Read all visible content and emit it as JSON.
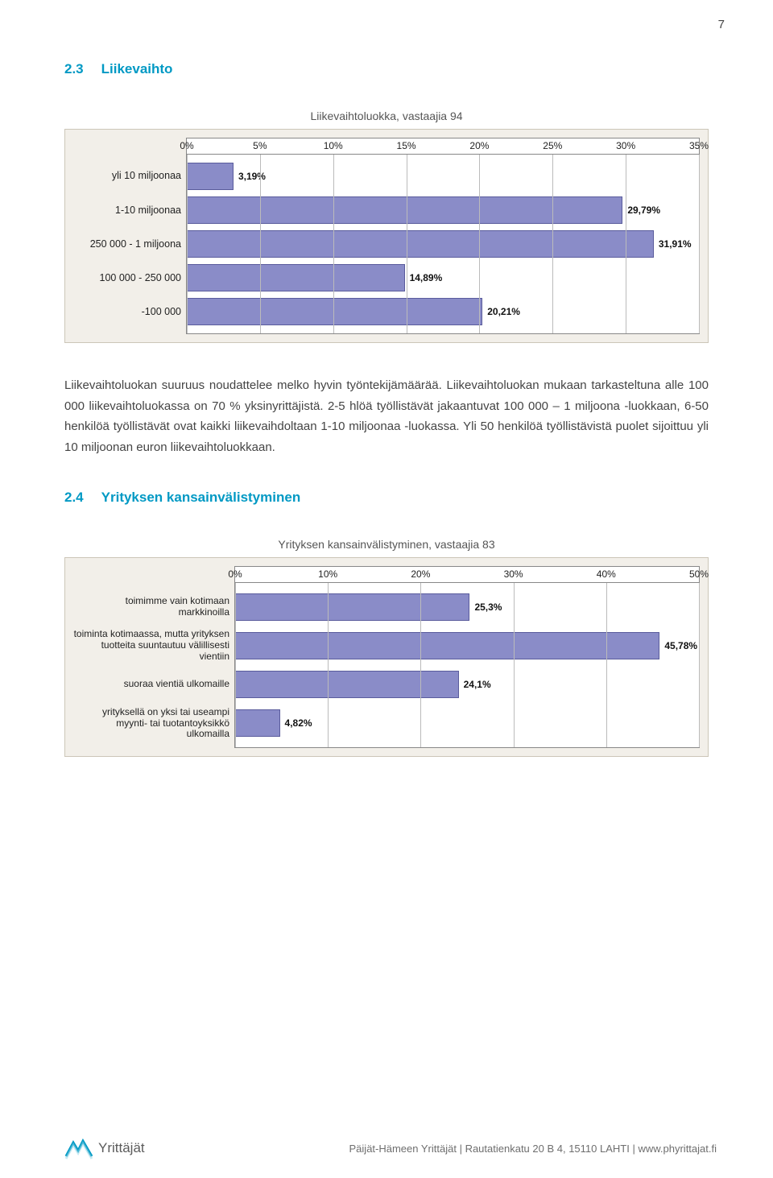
{
  "page_number": "7",
  "section1": {
    "number": "2.3",
    "title": "Liikevaihto",
    "chart_title": "Liikevaihtoluokka, vastaajia 94",
    "body_text": "Liikevaihtoluokan suuruus noudattelee melko hyvin työntekijämäärää. Liikevaihtoluokan mukaan tarkasteltuna alle 100 000 liikevaihtoluokassa on 70 % yksinyrittäjistä. 2-5 hlöä työllistävät jakaantuvat 100 000 – 1 miljoona -luokkaan, 6-50 henkilöä työllistävät ovat kaikki liikevaihdoltaan 1-10 miljoonaa -luokassa. Yli 50 henkilöä työllistävistä puolet sijoittuu yli 10 miljoonan euron liikevaihtoluokkaan.",
    "chart": {
      "type": "bar",
      "xmin": 0,
      "xmax": 35,
      "xstep": 5,
      "xticks": [
        "0%",
        "5%",
        "10%",
        "15%",
        "20%",
        "25%",
        "30%",
        "35%"
      ],
      "bar_color": "#8a8cc8",
      "bar_border": "#5a5c9c",
      "plot_bg": "#ffffff",
      "panel_bg": "#f2efe9",
      "grid_color": "#bbbbbb",
      "categories": [
        {
          "label": "yli 10 miljoonaa",
          "value": 3.19,
          "text": "3,19%"
        },
        {
          "label": "1-10 miljoonaa",
          "value": 29.79,
          "text": "29,79%"
        },
        {
          "label": "250 000 - 1 miljoona",
          "value": 31.91,
          "text": "31,91%"
        },
        {
          "label": "100 000 - 250 000",
          "value": 14.89,
          "text": "14,89%"
        },
        {
          "label": "-100 000",
          "value": 20.21,
          "text": "20,21%"
        }
      ]
    }
  },
  "section2": {
    "number": "2.4",
    "title": "Yrityksen kansainvälistyminen",
    "chart_title": "Yrityksen kansainvälistyminen, vastaajia 83",
    "chart": {
      "type": "bar",
      "xmin": 0,
      "xmax": 50,
      "xstep": 10,
      "xticks": [
        "0%",
        "10%",
        "20%",
        "30%",
        "40%",
        "50%"
      ],
      "bar_color": "#8a8cc8",
      "bar_border": "#5a5c9c",
      "plot_bg": "#ffffff",
      "panel_bg": "#f2efe9",
      "grid_color": "#bbbbbb",
      "categories": [
        {
          "label": "toimimme vain kotimaan markkinoilla",
          "value": 25.3,
          "text": "25,3%"
        },
        {
          "label": "toiminta kotimaassa, mutta yrityksen tuotteita suuntautuu välillisesti vientiin",
          "value": 45.78,
          "text": "45,78%"
        },
        {
          "label": "suoraa vientiä ulkomaille",
          "value": 24.1,
          "text": "24,1%"
        },
        {
          "label": "yrityksellä on yksi tai useampi myynti- tai tuotantoyksikkö ulkomailla",
          "value": 4.82,
          "text": "4,82%"
        }
      ]
    }
  },
  "footer": {
    "org": "Päijät-Hämeen Yrittäjät",
    "sep1": " | ",
    "address": "Rautatienkatu 20 B 4, 15110 LAHTI",
    "sep2": " | ",
    "url": "www.phyrittajat.fi",
    "logo_text": "Yrittäjät"
  }
}
